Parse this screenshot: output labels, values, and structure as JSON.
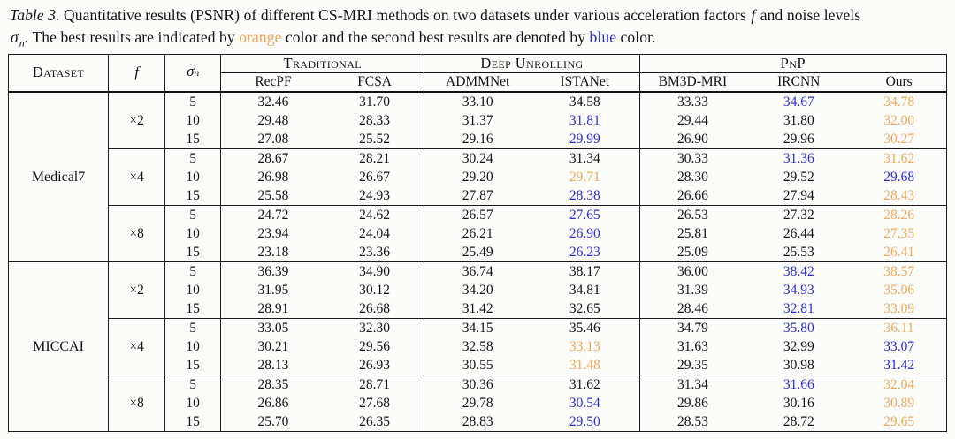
{
  "caption": {
    "segments": [
      {
        "text": "Table 3.",
        "style": "italic"
      },
      {
        "text": " Quantitative results (PSNR) of different CS-MRI methods on two datasets under various acceleration factors ",
        "style": "normal"
      },
      {
        "text": "f",
        "style": "math"
      },
      {
        "text": " and noise levels",
        "style": "normal"
      },
      {
        "text": "",
        "style": "break"
      },
      {
        "text": "σ",
        "style": "math"
      },
      {
        "text": "n",
        "style": "subscript"
      },
      {
        "text": ". The best results are indicated by ",
        "style": "normal"
      },
      {
        "text": "orange",
        "style": "orange"
      },
      {
        "text": " color and the second best results are denoted by ",
        "style": "normal"
      },
      {
        "text": "blue",
        "style": "blue"
      },
      {
        "text": " color.",
        "style": "normal"
      }
    ]
  },
  "table": {
    "corner_headers": {
      "dataset": "Dataset",
      "f": "f",
      "sigma": "σ",
      "sigma_sub": "n"
    },
    "groups": [
      {
        "label": "Traditional",
        "span": 2
      },
      {
        "label": "Deep Unrolling",
        "span": 2
      },
      {
        "label": "PnP",
        "span": 3
      }
    ],
    "methods": [
      "RecPF",
      "FCSA",
      "ADMMNet",
      "ISTANet",
      "BM3D-MRI",
      "IRCNN",
      "Ours"
    ],
    "legend": {
      "best": "orange",
      "second_best": "blue"
    },
    "colors": {
      "best": "#F0A957",
      "second": "#2B2BD6",
      "normal": "#131313"
    },
    "datasets": [
      {
        "name": "Medical7",
        "blocks": [
          {
            "factor": "×2",
            "rows": [
              {
                "sigma": "5",
                "values": [
                  "32.46",
                  "31.70",
                  "33.10",
                  "34.58",
                  "33.33",
                  "34.67",
                  "34.78"
                ],
                "colors": [
                  "k",
                  "k",
                  "k",
                  "k",
                  "k",
                  "b",
                  "o"
                ]
              },
              {
                "sigma": "10",
                "values": [
                  "29.48",
                  "28.33",
                  "31.37",
                  "31.81",
                  "29.44",
                  "31.80",
                  "32.00"
                ],
                "colors": [
                  "k",
                  "k",
                  "k",
                  "b",
                  "k",
                  "k",
                  "o"
                ]
              },
              {
                "sigma": "15",
                "values": [
                  "27.08",
                  "25.52",
                  "29.16",
                  "29.99",
                  "26.90",
                  "29.96",
                  "30.27"
                ],
                "colors": [
                  "k",
                  "k",
                  "k",
                  "b",
                  "k",
                  "k",
                  "o"
                ]
              }
            ]
          },
          {
            "factor": "×4",
            "rows": [
              {
                "sigma": "5",
                "values": [
                  "28.67",
                  "28.21",
                  "30.24",
                  "31.34",
                  "30.33",
                  "31.36",
                  "31.62"
                ],
                "colors": [
                  "k",
                  "k",
                  "k",
                  "k",
                  "k",
                  "b",
                  "o"
                ]
              },
              {
                "sigma": "10",
                "values": [
                  "26.98",
                  "26.67",
                  "29.20",
                  "29.71",
                  "28.30",
                  "29.52",
                  "29.68"
                ],
                "colors": [
                  "k",
                  "k",
                  "k",
                  "o",
                  "k",
                  "k",
                  "b"
                ]
              },
              {
                "sigma": "15",
                "values": [
                  "25.58",
                  "24.93",
                  "27.87",
                  "28.38",
                  "26.66",
                  "27.94",
                  "28.43"
                ],
                "colors": [
                  "k",
                  "k",
                  "k",
                  "b",
                  "k",
                  "k",
                  "o"
                ]
              }
            ]
          },
          {
            "factor": "×8",
            "rows": [
              {
                "sigma": "5",
                "values": [
                  "24.72",
                  "24.62",
                  "26.57",
                  "27.65",
                  "26.53",
                  "27.32",
                  "28.26"
                ],
                "colors": [
                  "k",
                  "k",
                  "k",
                  "b",
                  "k",
                  "k",
                  "o"
                ]
              },
              {
                "sigma": "10",
                "values": [
                  "23.94",
                  "24.04",
                  "26.21",
                  "26.90",
                  "25.81",
                  "26.44",
                  "27.35"
                ],
                "colors": [
                  "k",
                  "k",
                  "k",
                  "b",
                  "k",
                  "k",
                  "o"
                ]
              },
              {
                "sigma": "15",
                "values": [
                  "23.18",
                  "23.36",
                  "25.49",
                  "26.23",
                  "25.09",
                  "25.53",
                  "26.41"
                ],
                "colors": [
                  "k",
                  "k",
                  "k",
                  "b",
                  "k",
                  "k",
                  "o"
                ]
              }
            ]
          }
        ]
      },
      {
        "name": "MICCAI",
        "blocks": [
          {
            "factor": "×2",
            "rows": [
              {
                "sigma": "5",
                "values": [
                  "36.39",
                  "34.90",
                  "36.74",
                  "38.17",
                  "36.00",
                  "38.42",
                  "38.57"
                ],
                "colors": [
                  "k",
                  "k",
                  "k",
                  "k",
                  "k",
                  "b",
                  "o"
                ]
              },
              {
                "sigma": "10",
                "values": [
                  "31.95",
                  "30.12",
                  "34.20",
                  "34.81",
                  "31.39",
                  "34.93",
                  "35.06"
                ],
                "colors": [
                  "k",
                  "k",
                  "k",
                  "k",
                  "k",
                  "b",
                  "o"
                ]
              },
              {
                "sigma": "15",
                "values": [
                  "28.91",
                  "26.68",
                  "31.42",
                  "32.65",
                  "28.46",
                  "32.81",
                  "33.09"
                ],
                "colors": [
                  "k",
                  "k",
                  "k",
                  "k",
                  "k",
                  "b",
                  "o"
                ]
              }
            ]
          },
          {
            "factor": "×4",
            "rows": [
              {
                "sigma": "5",
                "values": [
                  "33.05",
                  "32.30",
                  "34.15",
                  "35.46",
                  "34.79",
                  "35.80",
                  "36.11"
                ],
                "colors": [
                  "k",
                  "k",
                  "k",
                  "k",
                  "k",
                  "b",
                  "o"
                ]
              },
              {
                "sigma": "10",
                "values": [
                  "30.21",
                  "29.56",
                  "32.58",
                  "33.13",
                  "31.63",
                  "32.99",
                  "33.07"
                ],
                "colors": [
                  "k",
                  "k",
                  "k",
                  "o",
                  "k",
                  "k",
                  "b"
                ]
              },
              {
                "sigma": "15",
                "values": [
                  "28.13",
                  "26.93",
                  "30.55",
                  "31.48",
                  "29.35",
                  "30.98",
                  "31.42"
                ],
                "colors": [
                  "k",
                  "k",
                  "k",
                  "o",
                  "k",
                  "k",
                  "b"
                ]
              }
            ]
          },
          {
            "factor": "×8",
            "rows": [
              {
                "sigma": "5",
                "values": [
                  "28.35",
                  "28.71",
                  "30.36",
                  "31.62",
                  "31.34",
                  "31.66",
                  "32.04"
                ],
                "colors": [
                  "k",
                  "k",
                  "k",
                  "k",
                  "k",
                  "b",
                  "o"
                ]
              },
              {
                "sigma": "10",
                "values": [
                  "26.86",
                  "27.68",
                  "29.78",
                  "30.54",
                  "29.86",
                  "30.16",
                  "30.89"
                ],
                "colors": [
                  "k",
                  "k",
                  "k",
                  "b",
                  "k",
                  "k",
                  "o"
                ]
              },
              {
                "sigma": "15",
                "values": [
                  "25.70",
                  "26.35",
                  "28.83",
                  "29.50",
                  "28.53",
                  "28.72",
                  "29.65"
                ],
                "colors": [
                  "k",
                  "k",
                  "k",
                  "b",
                  "k",
                  "k",
                  "o"
                ]
              }
            ]
          }
        ]
      }
    ]
  }
}
